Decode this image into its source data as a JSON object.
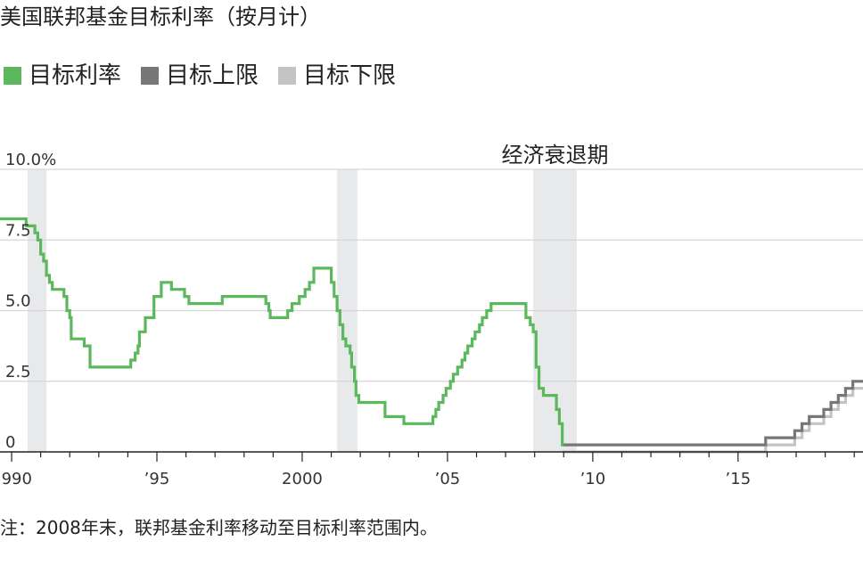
{
  "title": "美国联邦基金目标利率（按月计）",
  "note": "注：2008年末，联邦基金利率移动至目标利率范围内。",
  "colors": {
    "target": "#5cb85c",
    "upper": "#777777",
    "lower": "#c4c4c4",
    "recession": "#e8e9eb",
    "grid": "#d6d6d6",
    "axis": "#222222"
  },
  "chart_data": {
    "type": "line",
    "xlim": [
      1989.6,
      2019.3
    ],
    "ylim": [
      0,
      10
    ],
    "ytick_values": [
      0,
      2.5,
      5,
      7.5,
      10
    ],
    "ytick_labels": [
      "0",
      "2.5",
      "5.0",
      "7.5",
      "10.0%"
    ],
    "xtick_values": [
      1990,
      1995,
      2000,
      2005,
      2010,
      2015
    ],
    "xtick_labels": [
      "1990",
      "’95",
      "2000",
      "’05",
      "’10",
      "’15"
    ],
    "grid": "horizontal",
    "legend": [
      {
        "name": "目标利率",
        "color": "#5cb85c"
      },
      {
        "name": "目标上限",
        "color": "#777777"
      },
      {
        "name": "目标下限",
        "color": "#c4c4c4"
      }
    ],
    "recession_label": "经济衰退期",
    "recessions": [
      [
        1990.55,
        1991.2
      ],
      [
        2001.2,
        2001.9
      ],
      [
        2007.95,
        2009.45
      ]
    ],
    "series": [
      {
        "name": "目标利率",
        "color": "#5cb85c",
        "step": true,
        "points": [
          [
            1989.6,
            8.25
          ],
          [
            1990.5,
            8.0
          ],
          [
            1990.8,
            7.75
          ],
          [
            1990.9,
            7.5
          ],
          [
            1991.0,
            7.0
          ],
          [
            1991.1,
            6.75
          ],
          [
            1991.2,
            6.25
          ],
          [
            1991.3,
            6.0
          ],
          [
            1991.4,
            5.75
          ],
          [
            1991.8,
            5.5
          ],
          [
            1991.9,
            5.0
          ],
          [
            1992.0,
            4.75
          ],
          [
            1992.05,
            4.0
          ],
          [
            1992.5,
            3.75
          ],
          [
            1992.7,
            3.0
          ],
          [
            1994.1,
            3.25
          ],
          [
            1994.25,
            3.5
          ],
          [
            1994.35,
            3.75
          ],
          [
            1994.4,
            4.25
          ],
          [
            1994.6,
            4.75
          ],
          [
            1994.9,
            5.5
          ],
          [
            1995.15,
            6.0
          ],
          [
            1995.5,
            5.75
          ],
          [
            1995.95,
            5.5
          ],
          [
            1996.1,
            5.25
          ],
          [
            1997.25,
            5.5
          ],
          [
            1998.75,
            5.25
          ],
          [
            1998.85,
            5.0
          ],
          [
            1998.9,
            4.75
          ],
          [
            1999.5,
            5.0
          ],
          [
            1999.65,
            5.25
          ],
          [
            1999.9,
            5.5
          ],
          [
            2000.1,
            5.75
          ],
          [
            2000.25,
            6.0
          ],
          [
            2000.4,
            6.5
          ],
          [
            2001.0,
            6.0
          ],
          [
            2001.1,
            5.5
          ],
          [
            2001.2,
            5.0
          ],
          [
            2001.3,
            4.5
          ],
          [
            2001.4,
            4.0
          ],
          [
            2001.5,
            3.75
          ],
          [
            2001.65,
            3.5
          ],
          [
            2001.7,
            3.0
          ],
          [
            2001.8,
            2.5
          ],
          [
            2001.85,
            2.0
          ],
          [
            2001.95,
            1.75
          ],
          [
            2002.85,
            1.25
          ],
          [
            2003.5,
            1.0
          ],
          [
            2004.5,
            1.25
          ],
          [
            2004.6,
            1.5
          ],
          [
            2004.7,
            1.75
          ],
          [
            2004.85,
            2.0
          ],
          [
            2004.95,
            2.25
          ],
          [
            2005.1,
            2.5
          ],
          [
            2005.2,
            2.75
          ],
          [
            2005.35,
            3.0
          ],
          [
            2005.5,
            3.25
          ],
          [
            2005.6,
            3.5
          ],
          [
            2005.7,
            3.75
          ],
          [
            2005.85,
            4.0
          ],
          [
            2005.95,
            4.25
          ],
          [
            2006.1,
            4.5
          ],
          [
            2006.2,
            4.75
          ],
          [
            2006.35,
            5.0
          ],
          [
            2006.5,
            5.25
          ],
          [
            2007.7,
            4.75
          ],
          [
            2007.85,
            4.5
          ],
          [
            2007.95,
            4.25
          ],
          [
            2008.05,
            3.0
          ],
          [
            2008.15,
            2.25
          ],
          [
            2008.3,
            2.0
          ],
          [
            2008.75,
            1.5
          ],
          [
            2008.85,
            1.0
          ],
          [
            2008.95,
            0.25
          ],
          [
            2009.0,
            0.25
          ]
        ]
      },
      {
        "name": "目标上限",
        "color": "#777777",
        "step": true,
        "points": [
          [
            2008.95,
            0.25
          ],
          [
            2015.95,
            0.5
          ],
          [
            2016.95,
            0.75
          ],
          [
            2017.2,
            1.0
          ],
          [
            2017.45,
            1.25
          ],
          [
            2017.95,
            1.5
          ],
          [
            2018.2,
            1.75
          ],
          [
            2018.45,
            2.0
          ],
          [
            2018.7,
            2.25
          ],
          [
            2018.95,
            2.5
          ],
          [
            2019.3,
            2.5
          ]
        ]
      },
      {
        "name": "目标下限",
        "color": "#c4c4c4",
        "step": true,
        "points": [
          [
            2008.95,
            0.0
          ],
          [
            2015.95,
            0.25
          ],
          [
            2016.95,
            0.5
          ],
          [
            2017.2,
            0.75
          ],
          [
            2017.45,
            1.0
          ],
          [
            2017.95,
            1.25
          ],
          [
            2018.2,
            1.5
          ],
          [
            2018.45,
            1.75
          ],
          [
            2018.7,
            2.0
          ],
          [
            2018.95,
            2.25
          ],
          [
            2019.3,
            2.25
          ]
        ]
      }
    ]
  }
}
